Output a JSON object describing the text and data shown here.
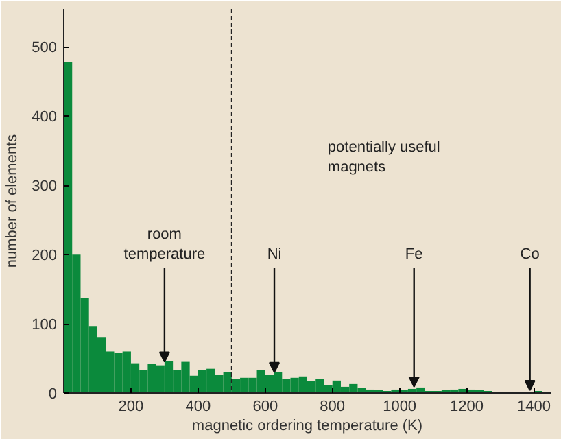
{
  "chart_data": {
    "type": "histogram",
    "xlabel": "magnetic ordering temperature (K)",
    "ylabel": "number of elements",
    "bins": [
      0,
      25,
      50,
      75,
      100,
      125,
      150,
      175,
      200,
      225,
      250,
      275,
      300,
      325,
      350,
      375,
      400,
      425,
      450,
      475,
      500,
      525,
      550,
      575,
      600,
      625,
      650,
      675,
      700,
      725,
      750,
      775,
      800,
      825,
      850,
      875,
      900,
      925,
      950,
      975,
      1000,
      1025,
      1050,
      1075,
      1100,
      1125,
      1150,
      1175,
      1200,
      1225,
      1250,
      1275,
      1300,
      1325,
      1350,
      1375,
      1400,
      1425
    ],
    "values": [
      478,
      200,
      137,
      97,
      80,
      60,
      58,
      60,
      43,
      33,
      42,
      40,
      46,
      33,
      45,
      25,
      33,
      35,
      26,
      30,
      20,
      22,
      22,
      33,
      26,
      30,
      20,
      22,
      24,
      17,
      20,
      11,
      18,
      9,
      13,
      7,
      5,
      4,
      3,
      5,
      4,
      6,
      8,
      3,
      3,
      4,
      5,
      6,
      5,
      4,
      3,
      1,
      0,
      0,
      0,
      0,
      3
    ],
    "color": "#0b8a3c",
    "xlim": [
      0,
      1450
    ],
    "ylim": [
      0,
      555
    ],
    "xticks": [
      200,
      400,
      600,
      800,
      1000,
      1200,
      1400
    ],
    "yticks": [
      0,
      100,
      200,
      300,
      400,
      500
    ],
    "grid": false,
    "ref_lines": [
      {
        "axis": "x",
        "value": 500,
        "line_style": "dashed",
        "color": "#222222"
      }
    ],
    "annotations": [
      {
        "text": "room\ntemperature",
        "x": 300,
        "y": 45
      },
      {
        "text": "Ni",
        "x": 627,
        "y": 30
      },
      {
        "text": "Fe",
        "x": 1043,
        "y": 9
      },
      {
        "text": "Co",
        "x": 1388,
        "y": 4
      },
      "potentially useful\nmagnets"
    ]
  }
}
